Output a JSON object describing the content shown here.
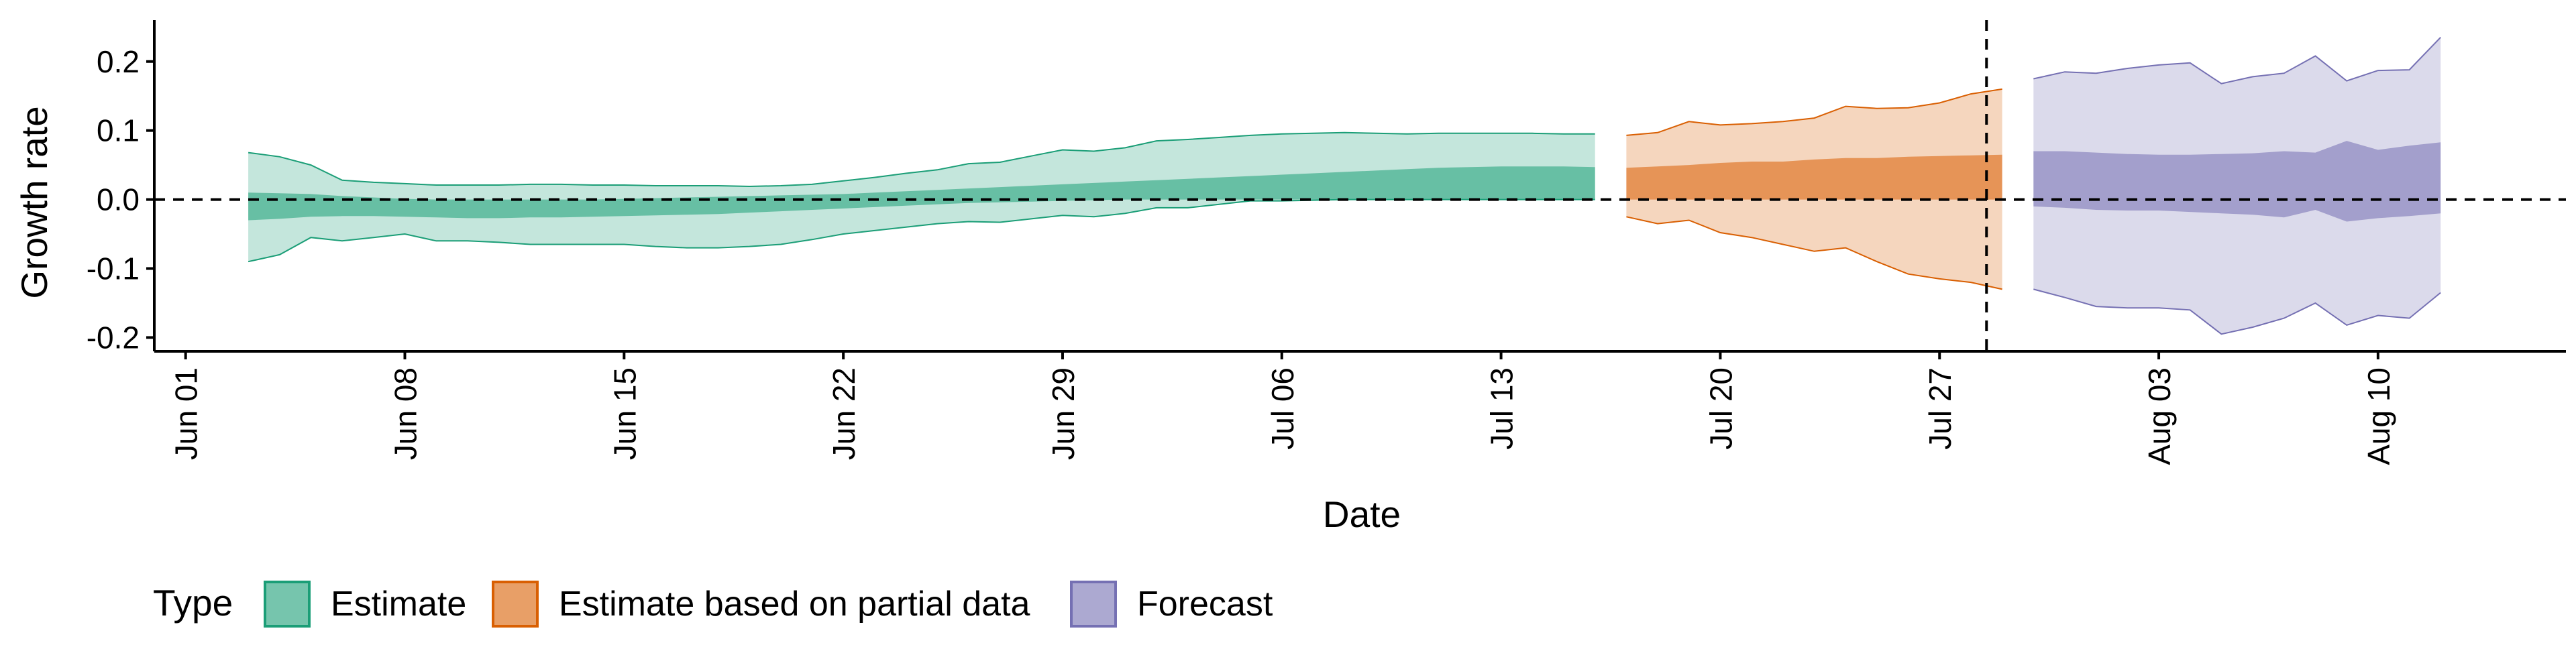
{
  "chart_data": {
    "type": "area",
    "xlabel": "Date",
    "ylabel": "Growth rate",
    "ylim": [
      -0.22,
      0.26
    ],
    "x_tick_labels": [
      "Jun 01",
      "Jun 08",
      "Jun 15",
      "Jun 22",
      "Jun 29",
      "Jul 06",
      "Jul 13",
      "Jul 20",
      "Jul 27",
      "Aug 03",
      "Aug 10"
    ],
    "x_tick_dates": [
      "2020-06-01",
      "2020-06-08",
      "2020-06-15",
      "2020-06-22",
      "2020-06-29",
      "2020-07-06",
      "2020-07-13",
      "2020-07-20",
      "2020-07-27",
      "2020-08-03",
      "2020-08-10"
    ],
    "y_ticks": [
      -0.2,
      -0.1,
      0.0,
      0.1,
      0.2
    ],
    "y_tick_labels": [
      "-0.2",
      "-0.1",
      "0.0",
      "0.1",
      "0.2"
    ],
    "xlim": [
      "2020-05-31",
      "2020-08-16"
    ],
    "reference_line_y": 0.0,
    "forecast_start_date": "2020-07-29",
    "legend": {
      "title": "Type",
      "position": "bottom-left"
    },
    "series": [
      {
        "name": "Estimate",
        "fill": "#1b9e77",
        "dates": [
          "2020-06-03",
          "2020-06-04",
          "2020-06-05",
          "2020-06-06",
          "2020-06-07",
          "2020-06-08",
          "2020-06-09",
          "2020-06-10",
          "2020-06-11",
          "2020-06-12",
          "2020-06-13",
          "2020-06-14",
          "2020-06-15",
          "2020-06-16",
          "2020-06-17",
          "2020-06-18",
          "2020-06-19",
          "2020-06-20",
          "2020-06-21",
          "2020-06-22",
          "2020-06-23",
          "2020-06-24",
          "2020-06-25",
          "2020-06-26",
          "2020-06-27",
          "2020-06-28",
          "2020-06-29",
          "2020-06-30",
          "2020-07-01",
          "2020-07-02",
          "2020-07-03",
          "2020-07-04",
          "2020-07-05",
          "2020-07-06",
          "2020-07-07",
          "2020-07-08",
          "2020-07-09",
          "2020-07-10",
          "2020-07-11",
          "2020-07-12",
          "2020-07-13",
          "2020-07-14",
          "2020-07-15",
          "2020-07-16"
        ],
        "lower_90": [
          -0.09,
          -0.08,
          -0.055,
          -0.06,
          -0.055,
          -0.05,
          -0.06,
          -0.06,
          -0.062,
          -0.065,
          -0.065,
          -0.065,
          -0.065,
          -0.068,
          -0.07,
          -0.07,
          -0.068,
          -0.065,
          -0.058,
          -0.05,
          -0.045,
          -0.04,
          -0.035,
          -0.032,
          -0.033,
          -0.028,
          -0.023,
          -0.025,
          -0.02,
          -0.012,
          -0.012,
          -0.007,
          -0.002,
          -0.002,
          -0.001,
          0.0,
          0.0,
          0.0,
          0.0,
          0.0,
          0.0,
          0.0,
          0.0,
          0.0
        ],
        "lower_50": [
          -0.03,
          -0.028,
          -0.025,
          -0.024,
          -0.024,
          -0.025,
          -0.026,
          -0.027,
          -0.027,
          -0.026,
          -0.026,
          -0.025,
          -0.024,
          -0.023,
          -0.022,
          -0.021,
          -0.019,
          -0.017,
          -0.015,
          -0.013,
          -0.011,
          -0.009,
          -0.007,
          -0.005,
          -0.004,
          -0.003,
          -0.002,
          -0.001,
          0.0,
          0.0,
          0.0,
          0.0,
          0.0,
          0.0,
          0.0,
          0.0,
          0.0,
          0.0,
          0.0,
          0.0,
          0.0,
          0.0,
          0.0,
          0.0
        ],
        "upper_50": [
          0.01,
          0.009,
          0.008,
          0.005,
          0.003,
          0.001,
          0.0,
          0.0,
          0.0,
          0.0,
          0.0,
          0.0,
          0.001,
          0.002,
          0.003,
          0.004,
          0.005,
          0.006,
          0.007,
          0.008,
          0.01,
          0.012,
          0.014,
          0.016,
          0.018,
          0.02,
          0.022,
          0.024,
          0.026,
          0.028,
          0.03,
          0.032,
          0.034,
          0.036,
          0.038,
          0.04,
          0.042,
          0.044,
          0.046,
          0.047,
          0.048,
          0.048,
          0.048,
          0.047
        ],
        "upper_90": [
          0.068,
          0.062,
          0.05,
          0.028,
          0.025,
          0.023,
          0.021,
          0.021,
          0.021,
          0.022,
          0.022,
          0.021,
          0.021,
          0.02,
          0.02,
          0.02,
          0.019,
          0.02,
          0.022,
          0.027,
          0.032,
          0.038,
          0.043,
          0.052,
          0.054,
          0.063,
          0.072,
          0.07,
          0.075,
          0.085,
          0.087,
          0.09,
          0.093,
          0.095,
          0.096,
          0.097,
          0.096,
          0.095,
          0.096,
          0.096,
          0.096,
          0.096,
          0.095,
          0.095
        ]
      },
      {
        "name": "Estimate based on partial data",
        "fill": "#d95f02",
        "dates": [
          "2020-07-17",
          "2020-07-18",
          "2020-07-19",
          "2020-07-20",
          "2020-07-21",
          "2020-07-22",
          "2020-07-23",
          "2020-07-24",
          "2020-07-25",
          "2020-07-26",
          "2020-07-27",
          "2020-07-28",
          "2020-07-29"
        ],
        "lower_90": [
          -0.025,
          -0.035,
          -0.03,
          -0.048,
          -0.055,
          -0.065,
          -0.075,
          -0.07,
          -0.09,
          -0.108,
          -0.115,
          -0.12,
          -0.13
        ],
        "lower_50": [
          0.0,
          0.0,
          0.0,
          0.0,
          0.0,
          0.0,
          0.0,
          0.0,
          0.0,
          0.0,
          0.0,
          0.0,
          0.0
        ],
        "upper_50": [
          0.046,
          0.048,
          0.05,
          0.053,
          0.055,
          0.055,
          0.058,
          0.06,
          0.06,
          0.062,
          0.063,
          0.064,
          0.065
        ],
        "upper_90": [
          0.093,
          0.097,
          0.113,
          0.108,
          0.11,
          0.113,
          0.118,
          0.135,
          0.132,
          0.133,
          0.14,
          0.153,
          0.16
        ]
      },
      {
        "name": "Forecast",
        "fill": "#7570b3",
        "dates": [
          "2020-07-30",
          "2020-07-31",
          "2020-08-01",
          "2020-08-02",
          "2020-08-03",
          "2020-08-04",
          "2020-08-05",
          "2020-08-06",
          "2020-08-07",
          "2020-08-08",
          "2020-08-09",
          "2020-08-10",
          "2020-08-11",
          "2020-08-12"
        ],
        "lower_90": [
          -0.13,
          -0.142,
          -0.155,
          -0.157,
          -0.157,
          -0.16,
          -0.195,
          -0.185,
          -0.172,
          -0.15,
          -0.182,
          -0.168,
          -0.172,
          -0.135
        ],
        "lower_50": [
          -0.01,
          -0.012,
          -0.015,
          -0.016,
          -0.016,
          -0.018,
          -0.02,
          -0.022,
          -0.026,
          -0.015,
          -0.032,
          -0.027,
          -0.024,
          -0.02
        ],
        "upper_50": [
          0.07,
          0.07,
          0.068,
          0.066,
          0.065,
          0.065,
          0.066,
          0.067,
          0.07,
          0.068,
          0.085,
          0.072,
          0.078,
          0.083
        ],
        "upper_90": [
          0.175,
          0.185,
          0.183,
          0.19,
          0.195,
          0.198,
          0.168,
          0.178,
          0.183,
          0.208,
          0.172,
          0.187,
          0.188,
          0.235
        ]
      }
    ]
  }
}
